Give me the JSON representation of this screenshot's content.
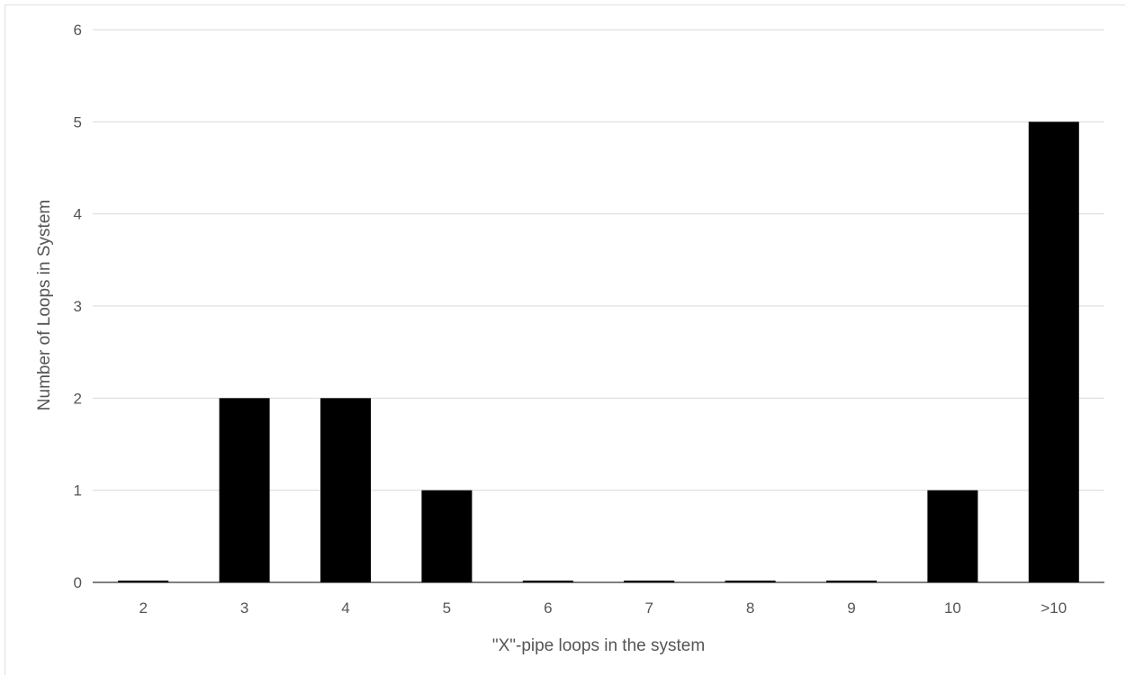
{
  "chart_data": {
    "type": "bar",
    "categories": [
      "2",
      "3",
      "4",
      "5",
      "6",
      "7",
      "8",
      "9",
      "10",
      ">10"
    ],
    "values": [
      0,
      2,
      2,
      1,
      0,
      0,
      0,
      0,
      1,
      5
    ],
    "title": "",
    "xlabel": "\"X\"-pipe loops in the system",
    "ylabel": "Number of Loops in System",
    "ylim": [
      0,
      6
    ],
    "yticks": [
      "0",
      "1",
      "2",
      "3",
      "4",
      "5",
      "6"
    ],
    "grid": true,
    "legend": "none",
    "colors": {
      "bar": "#000000",
      "grid": "#d9d9d9",
      "text": "#555555"
    }
  }
}
